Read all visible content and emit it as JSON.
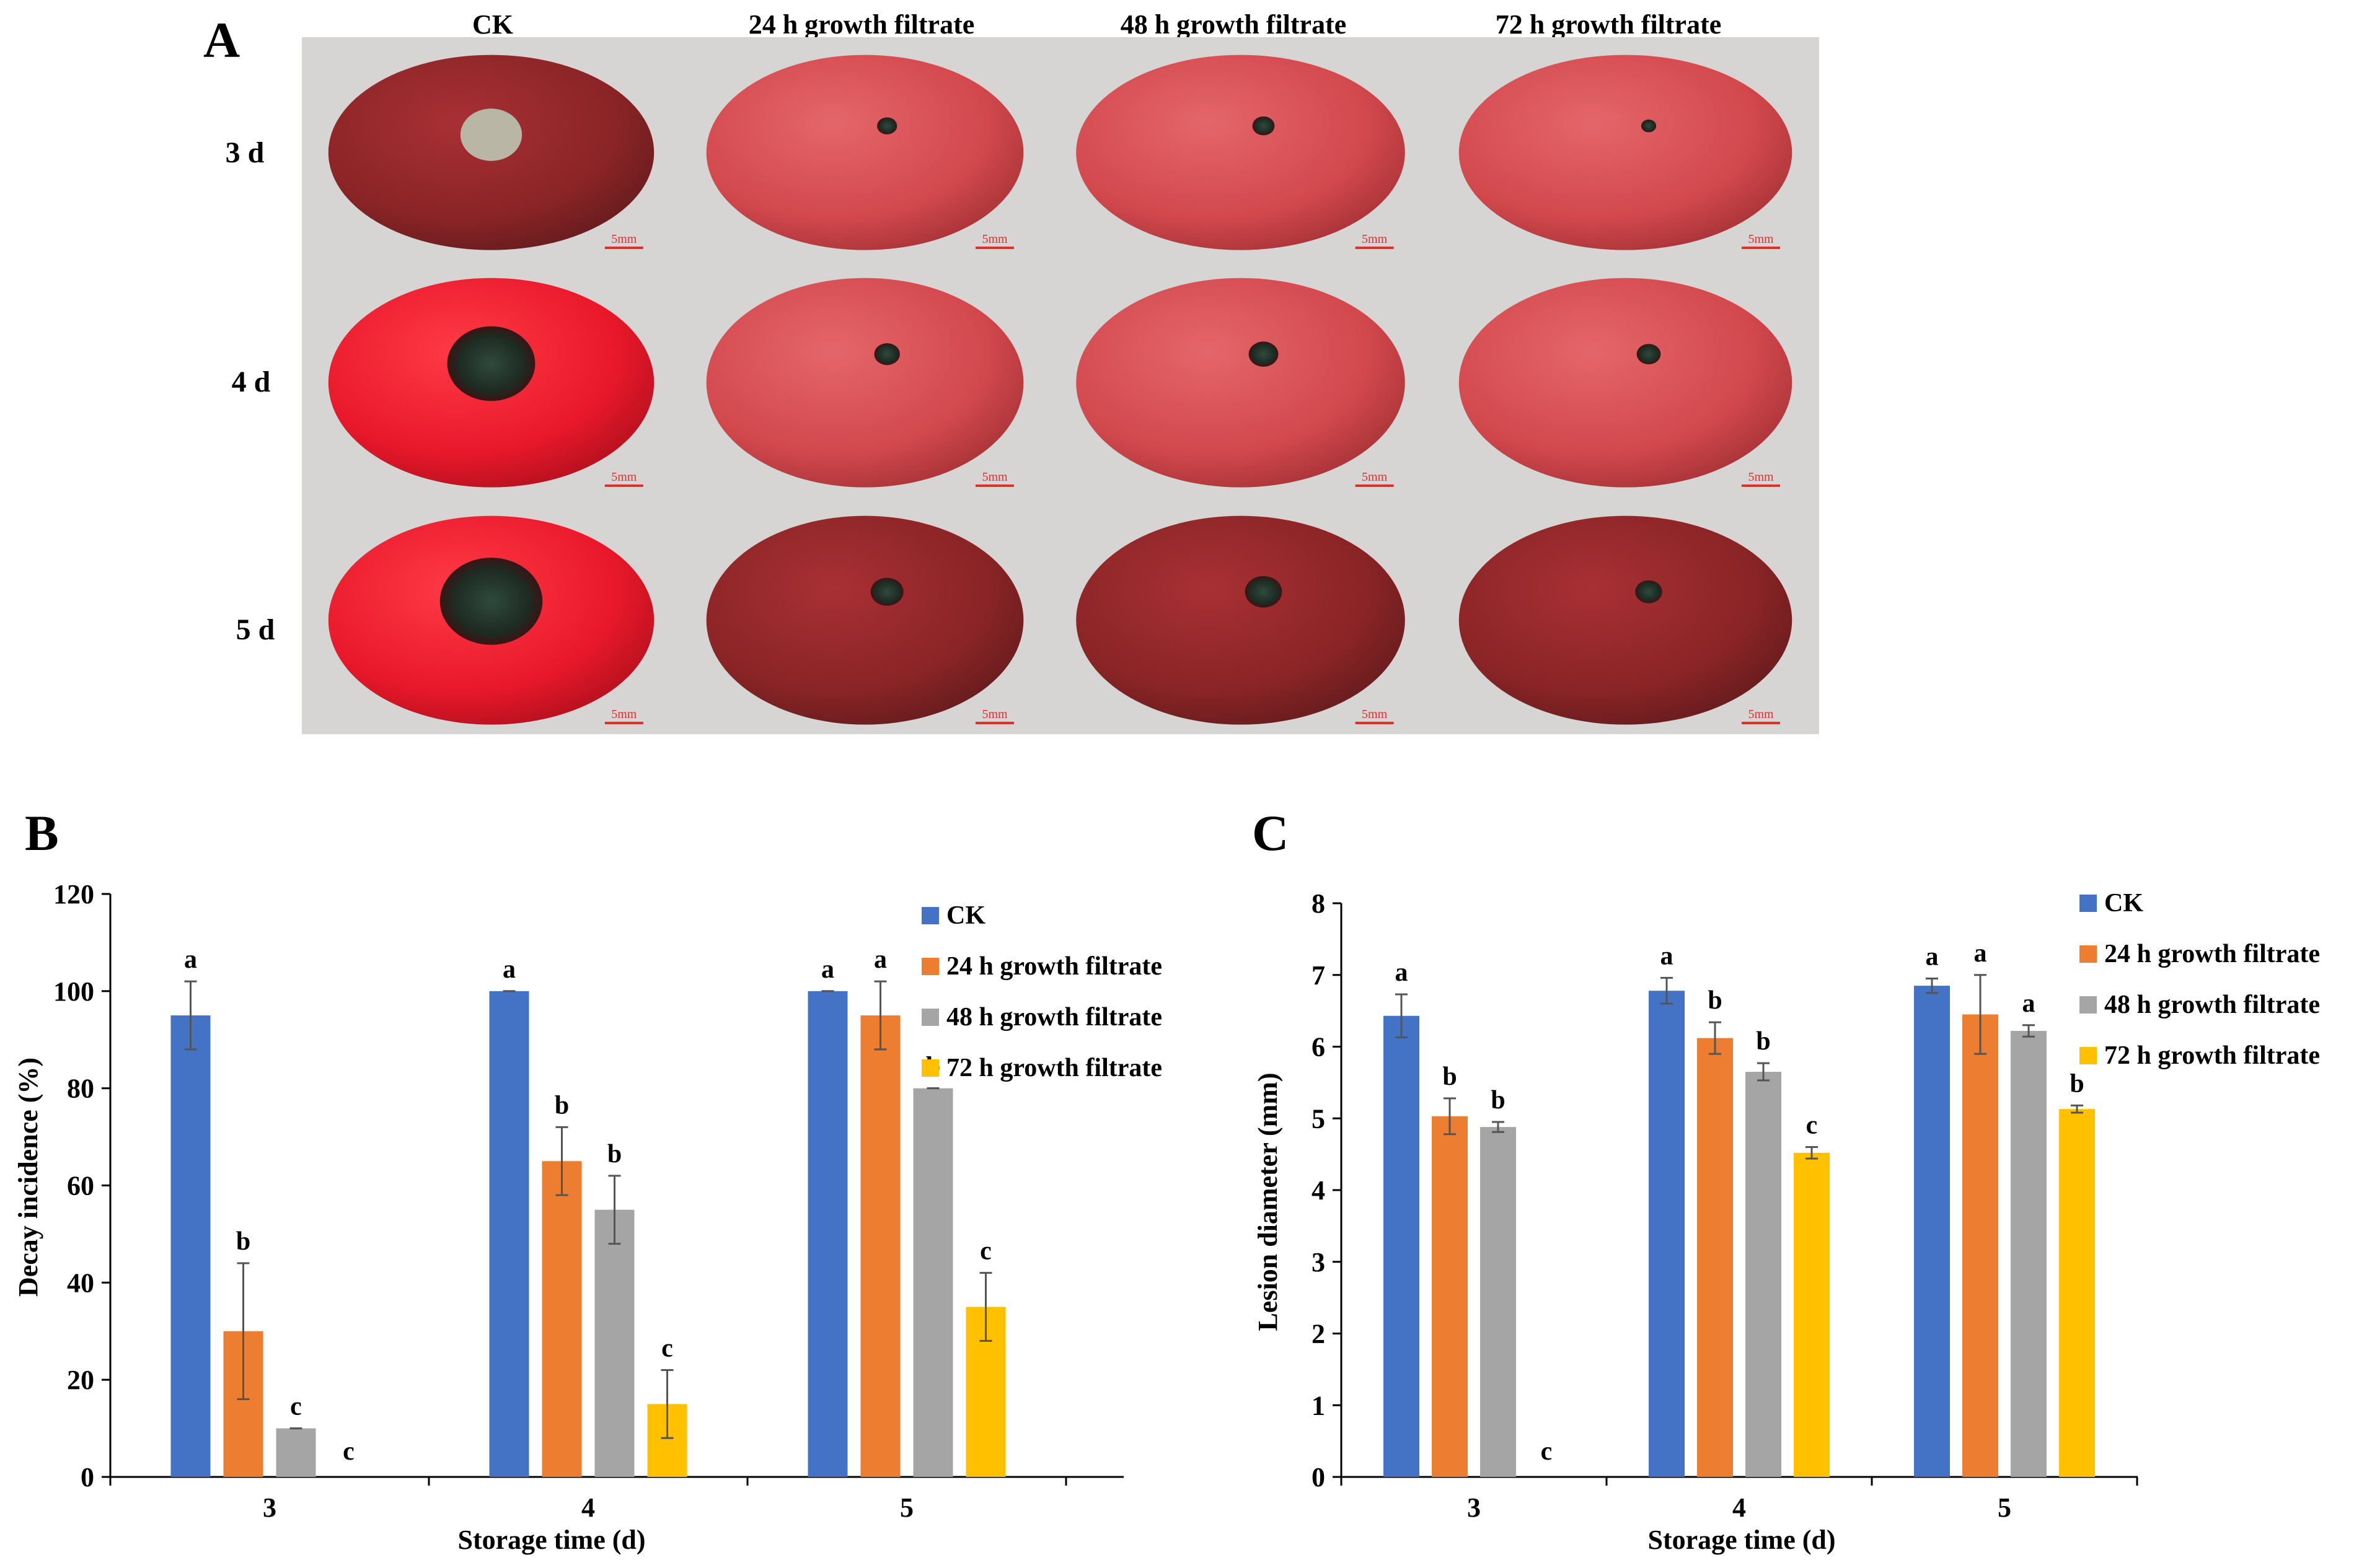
{
  "panel_a": {
    "label": "A",
    "column_headers": [
      "CK",
      "24 h growth filtrate",
      "48 h growth filtrate",
      "72 h growth filtrate"
    ],
    "row_labels": [
      "3 d",
      "4 d",
      "5 d"
    ],
    "scale_bar_label": "5mm",
    "lesion_size": [
      [
        0.42,
        0.14,
        0.15,
        0.1
      ],
      [
        0.6,
        0.18,
        0.2,
        0.16
      ],
      [
        0.7,
        0.23,
        0.25,
        0.18
      ]
    ],
    "colors": {
      "tile_background": "#d6d5d3",
      "fruit_dark": "#8a2426",
      "fruit_bright": "#e8182a",
      "fruit_medium": "#d2484d",
      "lesion": "#1e2a22",
      "lesion_ck_3d": "#b9b6a6",
      "scale_bar": "#e0302c"
    }
  },
  "chart_data": [
    {
      "panel": "B",
      "type": "bar",
      "title": "",
      "xlabel": "Storage time (d)",
      "ylabel": "Decay incidence (%)",
      "categories": [
        "3",
        "4",
        "5"
      ],
      "ylim": [
        0,
        120
      ],
      "yticks": [
        0,
        20,
        40,
        60,
        80,
        100,
        120
      ],
      "legend_position": "top-right",
      "series": [
        {
          "name": "CK",
          "color": "#4472c4",
          "values": [
            95,
            100,
            100
          ],
          "errors": [
            7,
            0,
            0
          ],
          "letters": [
            "a",
            "a",
            "a"
          ]
        },
        {
          "name": "24 h growth filtrate",
          "color": "#ed7d31",
          "values": [
            30,
            65,
            95
          ],
          "errors": [
            14,
            7,
            7
          ],
          "letters": [
            "b",
            "b",
            "a"
          ]
        },
        {
          "name": "48 h growth filtrate",
          "color": "#a5a5a5",
          "values": [
            10,
            55,
            80
          ],
          "errors": [
            0,
            7,
            0
          ],
          "letters": [
            "c",
            "b",
            "b"
          ]
        },
        {
          "name": "72 h growth filtrate",
          "color": "#ffc000",
          "values": [
            0,
            15,
            35
          ],
          "errors": [
            0,
            7,
            7
          ],
          "letters": [
            "c",
            "c",
            "c"
          ]
        }
      ]
    },
    {
      "panel": "C",
      "type": "bar",
      "title": "",
      "xlabel": "Storage time (d)",
      "ylabel": "Lesion diameter (mm)",
      "categories": [
        "3",
        "4",
        "5"
      ],
      "ylim": [
        0,
        8
      ],
      "yticks": [
        0,
        1,
        2,
        3,
        4,
        5,
        6,
        7,
        8
      ],
      "legend_position": "top-right",
      "series": [
        {
          "name": "CK",
          "color": "#4472c4",
          "values": [
            6.43,
            6.78,
            6.85
          ],
          "errors": [
            0.3,
            0.18,
            0.1
          ],
          "letters": [
            "a",
            "a",
            "a"
          ]
        },
        {
          "name": "24 h growth filtrate",
          "color": "#ed7d31",
          "values": [
            5.03,
            6.12,
            6.45
          ],
          "errors": [
            0.25,
            0.22,
            0.55
          ],
          "letters": [
            "b",
            "b",
            "a"
          ]
        },
        {
          "name": "48 h growth filtrate",
          "color": "#a5a5a5",
          "values": [
            4.88,
            5.65,
            6.22
          ],
          "errors": [
            0.07,
            0.12,
            0.08
          ],
          "letters": [
            "b",
            "b",
            "a"
          ]
        },
        {
          "name": "72 h growth filtrate",
          "color": "#ffc000",
          "values": [
            0,
            4.52,
            5.13
          ],
          "errors": [
            0,
            0.08,
            0.05
          ],
          "letters": [
            "c",
            "c",
            "b"
          ]
        }
      ]
    }
  ]
}
